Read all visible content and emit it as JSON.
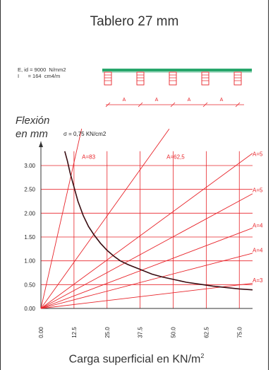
{
  "title": "Tablero 27 mm",
  "properties": {
    "line1": "E, id = 9000  N/mm2",
    "line2": "I      = 164  cm4/m"
  },
  "sketch": {
    "span_label": "A"
  },
  "chart_data": {
    "type": "line",
    "ylabel_line1": "Flexión",
    "ylabel_line2": "en mm",
    "xlabel": "Carga superficial en KN/m",
    "xlabel_sup": "2",
    "curve_label": "σ = 0,75 KN/cm2",
    "xlim": [
      0,
      80
    ],
    "ylim": [
      0,
      3.3
    ],
    "x_ticks": [
      "0.00",
      "12.5",
      "25.0",
      "37.5",
      "50.0",
      "62.5",
      "75.0"
    ],
    "x_tick_values": [
      0,
      12.5,
      25,
      37.5,
      50,
      62.5,
      75
    ],
    "y_ticks": [
      "0.00",
      "0.50",
      "1.00",
      "1.50",
      "2.00",
      "2.50",
      "3.00"
    ],
    "y_tick_values": [
      0,
      0.5,
      1,
      1.5,
      2,
      2.5,
      3
    ],
    "grid": true,
    "series": [
      {
        "name": "A=83",
        "slope": 0.245,
        "end_x": 15.4,
        "label_x": 15.5,
        "label_y": 3.14
      },
      {
        "name": "A=62,5",
        "slope": 0.0777,
        "end_x": 48.5,
        "label_x": 47.5,
        "label_y": 3.14
      },
      {
        "name": "A=5",
        "slope": 0.0407,
        "end_x": 80,
        "label_x": 80,
        "label_y": 3.2
      },
      {
        "name": "A=5",
        "slope": 0.0301,
        "end_x": 80,
        "label_x": 80,
        "label_y": 2.44
      },
      {
        "name": "A=4",
        "slope": 0.0211,
        "end_x": 80,
        "label_x": 80,
        "label_y": 1.7
      },
      {
        "name": "A=4",
        "slope": 0.0145,
        "end_x": 80,
        "label_x": 80,
        "label_y": 1.18
      },
      {
        "name": "A=3",
        "slope": 0.0066,
        "end_x": 80,
        "label_x": 80,
        "label_y": 0.55
      }
    ],
    "curve": [
      [
        9,
        3.3
      ],
      [
        10,
        3.1
      ],
      [
        11,
        2.85
      ],
      [
        12.5,
        2.55
      ],
      [
        14,
        2.25
      ],
      [
        16,
        1.95
      ],
      [
        18,
        1.72
      ],
      [
        20,
        1.55
      ],
      [
        22.5,
        1.37
      ],
      [
        25,
        1.22
      ],
      [
        27.5,
        1.1
      ],
      [
        30,
        1.0
      ],
      [
        33,
        0.92
      ],
      [
        37.5,
        0.82
      ],
      [
        42,
        0.72
      ],
      [
        46,
        0.66
      ],
      [
        50,
        0.61
      ],
      [
        55,
        0.55
      ],
      [
        60,
        0.51
      ],
      [
        65,
        0.47
      ],
      [
        70,
        0.44
      ],
      [
        75,
        0.41
      ],
      [
        80,
        0.39
      ]
    ],
    "colors": {
      "lines": "#e8242a",
      "grid": "#e8242a",
      "curve": "#3a0d12",
      "axes": "#333333",
      "beam": "#27a66b"
    }
  }
}
